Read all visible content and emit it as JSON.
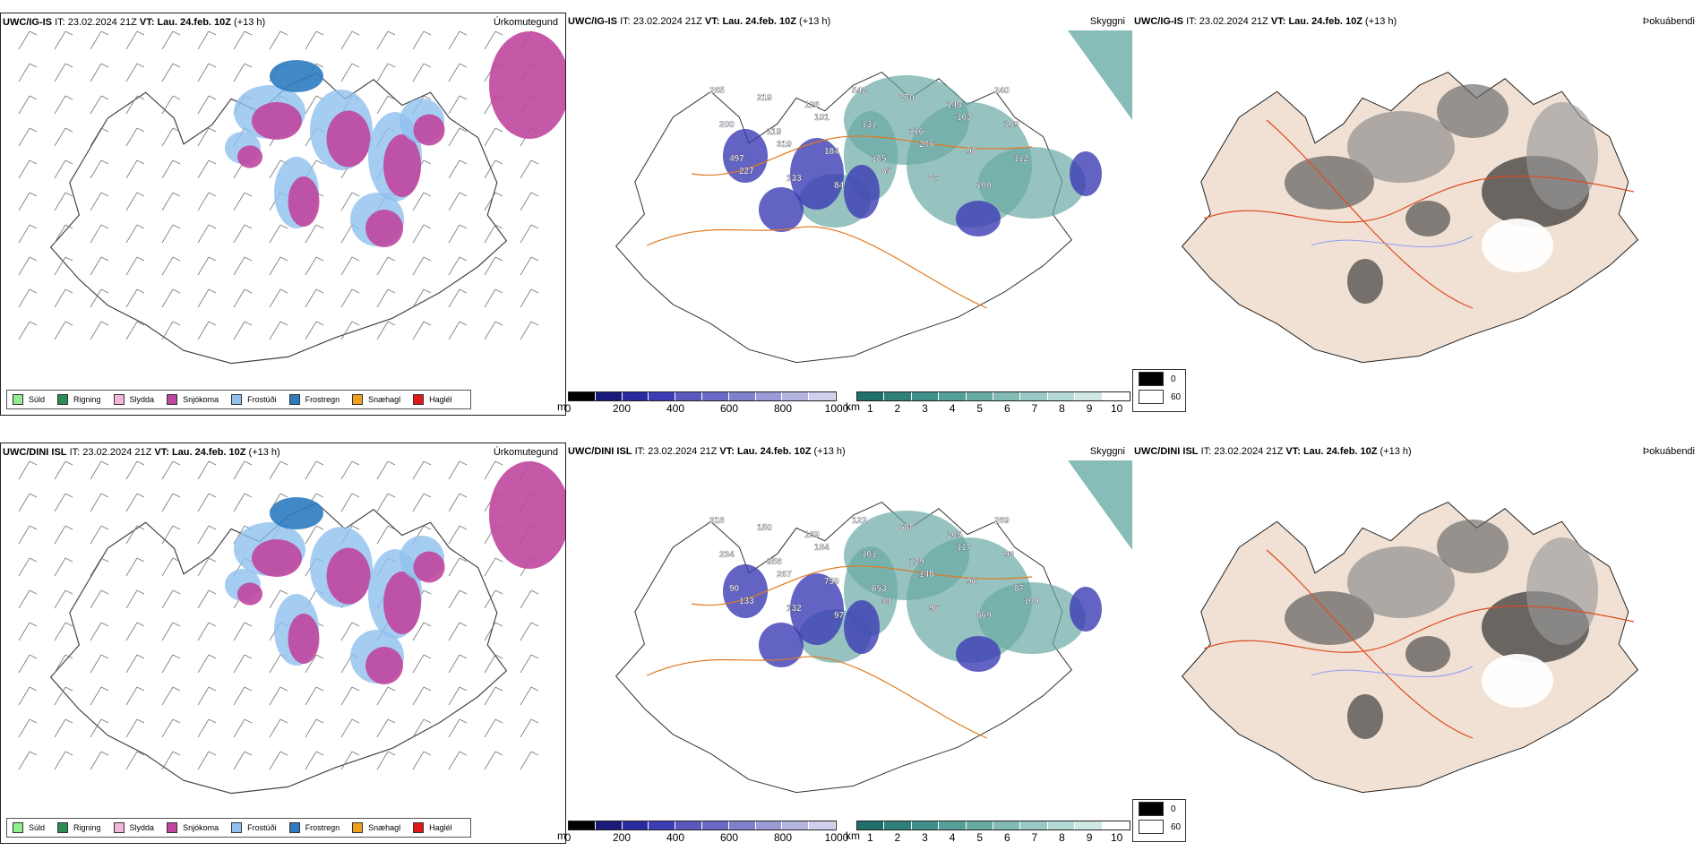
{
  "panels": [
    {
      "model": "UWC/IG-IS",
      "it_label": "IT:",
      "it_value": "23.02.2024 21Z",
      "vt_label": "VT:",
      "vt_value": "Lau. 24.feb. 10Z",
      "lead": "(+13 h)",
      "title": "Úrkomutegund"
    },
    {
      "model": "UWC/IG-IS",
      "it_label": "IT:",
      "it_value": "23.02.2024 21Z",
      "vt_label": "VT:",
      "vt_value": "Lau. 24.feb. 10Z",
      "lead": "(+13 h)",
      "title": "Skyggni"
    },
    {
      "model": "UWC/IG-IS",
      "it_label": "IT:",
      "it_value": "23.02.2024 21Z",
      "vt_label": "VT:",
      "vt_value": "Lau. 24.feb. 10Z",
      "lead": "(+13 h)",
      "title": "Þokuábendi"
    },
    {
      "model": "UWC/DINI ISL",
      "it_label": "IT:",
      "it_value": "23.02.2024 21Z",
      "vt_label": "VT:",
      "vt_value": "Lau. 24.feb. 10Z",
      "lead": "(+13 h)",
      "title": "Úrkomutegund"
    },
    {
      "model": "UWC/DINI ISL",
      "it_label": "IT:",
      "it_value": "23.02.2024 21Z",
      "vt_label": "VT:",
      "vt_value": "Lau. 24.feb. 10Z",
      "lead": "(+13 h)",
      "title": "Skyggni"
    },
    {
      "model": "UWC/DINI ISL",
      "it_label": "IT:",
      "it_value": "23.02.2024 21Z",
      "vt_label": "VT:",
      "vt_value": "Lau. 24.feb. 10Z",
      "lead": "(+13 h)",
      "title": "Þokuábendi"
    }
  ],
  "precip_legend": [
    {
      "label": "Súld",
      "color": "#90ee90"
    },
    {
      "label": "Rigning",
      "color": "#2e8b57"
    },
    {
      "label": "Slydda",
      "color": "#f4b6d8"
    },
    {
      "label": "Snjókoma",
      "color": "#c0469f"
    },
    {
      "label": "Frostúði",
      "color": "#8fc0ee"
    },
    {
      "label": "Frostregn",
      "color": "#2c7bc0"
    },
    {
      "label": "Snæhagl",
      "color": "#f0a020"
    },
    {
      "label": "Haglél",
      "color": "#e01818"
    }
  ],
  "visibility": {
    "m_unit": "m",
    "m_ticks": [
      "0",
      "200",
      "400",
      "600",
      "800",
      "1000"
    ],
    "m_colors": [
      "#000000",
      "#1a1a7a",
      "#2a2aa0",
      "#3c3cb4",
      "#5a5abe",
      "#6a6ac6",
      "#8080cc",
      "#9a9ad6",
      "#b4b4e0",
      "#d0d0ee"
    ],
    "km_unit": "km",
    "km_ticks": [
      "1",
      "2",
      "3",
      "4",
      "5",
      "6",
      "7",
      "8",
      "9",
      "10"
    ],
    "km_colors": [
      "#1f6f6a",
      "#2f7f7a",
      "#3f8f8a",
      "#56a09a",
      "#6aaaa4",
      "#82bab4",
      "#9ac8c4",
      "#b4d8d4",
      "#cee6e4",
      "#ffffff"
    ]
  },
  "fog_legend": [
    {
      "label": "0",
      "color": "#000000"
    },
    {
      "label": "60",
      "color": "#ffffff"
    }
  ],
  "visibility_labels_top": [
    "265",
    "219",
    "126",
    "542",
    "270",
    "148",
    "240",
    "200",
    "119",
    "101",
    "131",
    "116",
    "103",
    "109",
    "497",
    "319",
    "184",
    "185",
    "206",
    "98",
    "112",
    "227",
    "133",
    "84",
    "85",
    "87",
    "100"
  ],
  "visibility_labels_bottom": [
    "318",
    "150",
    "169",
    "122",
    "688",
    "205",
    "269",
    "234",
    "958",
    "184",
    "101",
    "129",
    "117",
    "93",
    "90",
    "267",
    "759",
    "653",
    "148",
    "96",
    "87",
    "133",
    "132",
    "97",
    "44",
    "96",
    "869",
    "100"
  ]
}
